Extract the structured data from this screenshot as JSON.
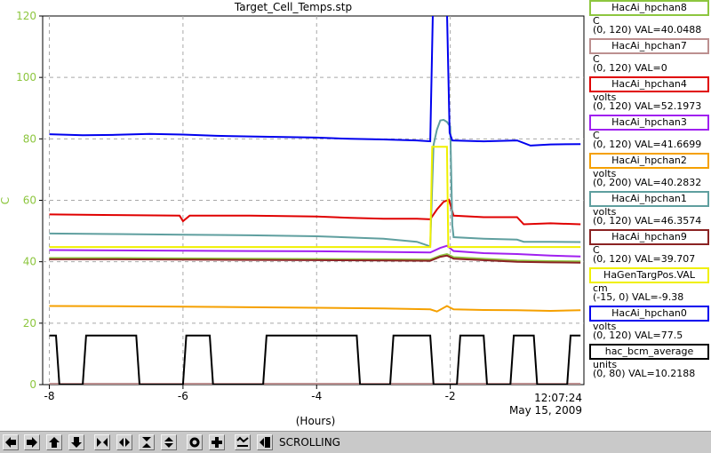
{
  "chart_data": {
    "type": "line",
    "title": "Target_Cell_Temps.stp",
    "xlabel": "(Hours)",
    "ylabel": "C",
    "xlim": [
      -8.1,
      0
    ],
    "ylim": [
      0,
      120
    ],
    "xticks": [
      -8,
      -6,
      -4,
      -2
    ],
    "yticks": [
      0,
      20,
      40,
      60,
      80,
      100,
      120
    ],
    "grid": true,
    "legend_position": "right",
    "timestamp": {
      "time": "12:07:24",
      "date": "May 15, 2009"
    },
    "series": [
      {
        "name": "HacAi_hpchan8",
        "unit": "C",
        "range": "(0, 120)",
        "val": "40.0488",
        "color": "#8dc63f",
        "x": [
          -8,
          -7,
          -6,
          -5,
          -4,
          -3,
          -2.3,
          -2.15,
          -2.05,
          -1.95,
          -1,
          -0.5,
          -0.05
        ],
        "y": [
          41.2,
          41.2,
          41.1,
          41.0,
          40.9,
          40.8,
          40.7,
          42,
          42.5,
          41.5,
          40.4,
          40.2,
          40.1
        ]
      },
      {
        "name": "HacAi_hpchan7",
        "unit": "C",
        "range": "(0, 120)",
        "val": "0",
        "color": "#bc8f8f",
        "x": [
          -8,
          -0.05
        ],
        "y": [
          0.3,
          0.3
        ]
      },
      {
        "name": "HacAi_hpchan4",
        "unit": "volts",
        "range": "(0, 120)",
        "val": "52.1973",
        "color": "#e00000",
        "x": [
          -8,
          -7,
          -6.05,
          -6,
          -5.9,
          -5,
          -4,
          -3.5,
          -3,
          -2.5,
          -2.3,
          -2.2,
          -2.1,
          -2.02,
          -1.95,
          -1.5,
          -1,
          -0.9,
          -0.5,
          -0.05
        ],
        "y": [
          55.4,
          55.2,
          55,
          53.2,
          55,
          55,
          54.7,
          54.3,
          54,
          54,
          53.8,
          57,
          59.5,
          60.2,
          55,
          54.5,
          54.5,
          52.2,
          52.5,
          52.2
        ]
      },
      {
        "name": "HacAi_hpchan3",
        "unit": "C",
        "range": "(0, 120)",
        "val": "41.6699",
        "color": "#a020f0",
        "x": [
          -8,
          -7,
          -6,
          -5,
          -4,
          -3,
          -2.3,
          -2.15,
          -2.05,
          -1.95,
          -1.5,
          -1,
          -0.5,
          -0.05
        ],
        "y": [
          43.8,
          43.7,
          43.6,
          43.5,
          43.4,
          43.2,
          43,
          44.5,
          45.2,
          43.5,
          42.8,
          42.5,
          42,
          41.7
        ]
      },
      {
        "name": "HacAi_hpchan2",
        "unit": "volts",
        "range": "(0, 200)",
        "val": "40.2832",
        "color": "#f5a000",
        "x": [
          -8,
          -7,
          -6,
          -5,
          -4,
          -3,
          -2.3,
          -2.2,
          -2.05,
          -1.95,
          -1.5,
          -1,
          -0.5,
          -0.05
        ],
        "y": [
          25.6,
          25.5,
          25.4,
          25.2,
          25,
          24.8,
          24.5,
          23.8,
          25.6,
          24.5,
          24.3,
          24.2,
          24,
          24.2
        ]
      },
      {
        "name": "HacAi_hpchan1",
        "unit": "volts",
        "range": "(0, 120)",
        "val": "46.3574",
        "color": "#5f9f9f",
        "x": [
          -8,
          -7,
          -6,
          -5,
          -4,
          -3,
          -2.5,
          -2.3,
          -2.25,
          -2.2,
          -2.15,
          -2.1,
          -2.05,
          -2.0,
          -1.97,
          -1.95,
          -1.5,
          -1,
          -0.9,
          -0.5,
          -0.05
        ],
        "y": [
          49.2,
          49,
          48.8,
          48.6,
          48.3,
          47.5,
          46.5,
          45,
          78,
          83,
          86,
          86.2,
          85.5,
          84,
          52,
          48,
          47.5,
          47.2,
          46.5,
          46.5,
          46.4
        ]
      },
      {
        "name": "HacAi_hpchan9",
        "unit": "C",
        "range": "(0, 120)",
        "val": "39.707",
        "color": "#8b2323",
        "x": [
          -8,
          -7,
          -6,
          -5,
          -4,
          -3,
          -2.3,
          -2.15,
          -2.05,
          -1.95,
          -1,
          -0.5,
          -0.05
        ],
        "y": [
          40.8,
          40.8,
          40.7,
          40.6,
          40.5,
          40.4,
          40.3,
          41.6,
          42,
          41,
          40,
          39.8,
          39.7
        ]
      },
      {
        "name": "HaGenTargPos.VAL",
        "unit": "cm",
        "range": "(-15, 0)",
        "val": "-9.38",
        "color": "#f0f000",
        "x": [
          -8,
          -2.3,
          -2.27,
          -2.05,
          -2.03,
          -0.05
        ],
        "y": [
          44.8,
          44.8,
          77.4,
          77.4,
          44.8,
          44.8
        ]
      },
      {
        "name": "HacAi_hpchan0",
        "unit": "volts",
        "range": "(0, 120)",
        "val": "77.5",
        "color": "#0000ee",
        "x": [
          -8,
          -7.5,
          -7,
          -6.5,
          -6,
          -5.5,
          -5,
          -4.5,
          -4,
          -3.5,
          -3,
          -2.5,
          -2.3,
          -2.26,
          -2.22,
          -2.05,
          -2.01,
          -1.97,
          -1.5,
          -1,
          -0.8,
          -0.5,
          -0.05
        ],
        "y": [
          81.5,
          81.2,
          81.3,
          81.6,
          81.4,
          81.0,
          80.8,
          80.6,
          80.4,
          80.0,
          79.8,
          79.5,
          79.2,
          122,
          122,
          122,
          82,
          79.5,
          79.2,
          79.5,
          77.8,
          78.2,
          78.3
        ]
      },
      {
        "name": "hac_bcm_average",
        "unit": "units",
        "range": "(0, 80)",
        "val": "10.2188",
        "color": "#000000",
        "x": [
          -8,
          -7.9,
          -7.85,
          -7.5,
          -7.45,
          -6.7,
          -6.65,
          -6.0,
          -5.95,
          -5.6,
          -5.55,
          -4.8,
          -4.75,
          -3.4,
          -3.35,
          -2.9,
          -2.85,
          -2.3,
          -2.25,
          -1.9,
          -1.85,
          -1.5,
          -1.45,
          -1.1,
          -1.05,
          -0.75,
          -0.7,
          -0.25,
          -0.2,
          -0.05
        ],
        "y": [
          16,
          16,
          0,
          0,
          16,
          16,
          0,
          0,
          16,
          16,
          0,
          0,
          16,
          16,
          0,
          0,
          16,
          16,
          0,
          0,
          16,
          16,
          0,
          0,
          16,
          16,
          0,
          0,
          16,
          16
        ]
      }
    ]
  },
  "toolbar": {
    "status": "SCROLLING",
    "buttons": [
      "scroll-left",
      "scroll-right",
      "scroll-up",
      "scroll-down",
      "zoom-in-horizontal",
      "zoom-out-horizontal",
      "zoom-in-vertical",
      "zoom-out-vertical",
      "reset",
      "add",
      "autoscale",
      "export"
    ]
  }
}
